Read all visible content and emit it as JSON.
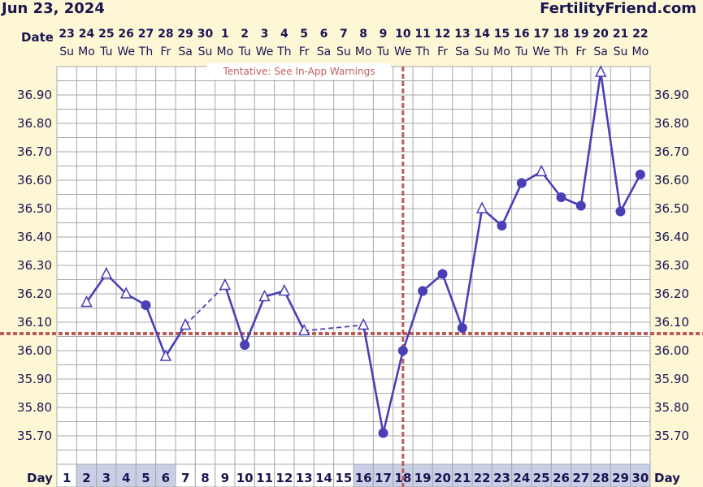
{
  "header": {
    "date": "Jun 23, 2024",
    "brand": "FertilityFriend.com"
  },
  "row_labels": {
    "date": "Date",
    "day": "Day"
  },
  "note": "Tentative: See In-App Warnings",
  "colors": {
    "background": "#fdf7d6",
    "plot_background": "#ffffff",
    "grid": "#a8a8a8",
    "line": "#4a3fb5",
    "coverline": "#c05a55",
    "text": "#1a1550",
    "day_cell_highlight": "#c8d0e8"
  },
  "chart_data": {
    "type": "line",
    "title": "",
    "xlabel": "Day",
    "ylabel": "",
    "ylim": [
      35.62,
      36.98
    ],
    "y_ticks": [
      "36.90",
      "36.80",
      "36.70",
      "36.60",
      "36.50",
      "36.40",
      "36.30",
      "36.20",
      "36.10",
      "36.00",
      "35.90",
      "35.80",
      "35.70"
    ],
    "days": [
      1,
      2,
      3,
      4,
      5,
      6,
      7,
      8,
      9,
      10,
      11,
      12,
      13,
      14,
      15,
      16,
      17,
      18,
      19,
      20,
      21,
      22,
      23,
      24,
      25,
      26,
      27,
      28,
      29,
      30
    ],
    "dates": [
      "23",
      "24",
      "25",
      "26",
      "27",
      "28",
      "29",
      "30",
      "1",
      "2",
      "3",
      "4",
      "5",
      "6",
      "7",
      "8",
      "9",
      "10",
      "11",
      "12",
      "13",
      "14",
      "15",
      "16",
      "17",
      "18",
      "19",
      "20",
      "21",
      "22"
    ],
    "weekdays": [
      "Su",
      "Mo",
      "Tu",
      "We",
      "Th",
      "Fr",
      "Sa",
      "Su",
      "Mo",
      "Tu",
      "We",
      "Th",
      "Fr",
      "Sa",
      "Su",
      "Mo",
      "Tu",
      "We",
      "Th",
      "Fr",
      "Sa",
      "Su",
      "Mo",
      "Tu",
      "We",
      "Th",
      "Fr",
      "Sa",
      "Su",
      "Mo"
    ],
    "highlighted_days": [
      2,
      3,
      4,
      5,
      6,
      16,
      17,
      18,
      19,
      20,
      21,
      22,
      23,
      24,
      25,
      26,
      27,
      28,
      29,
      30
    ],
    "temperatures": [
      {
        "day": 2,
        "value": 36.17,
        "marker": "triangle"
      },
      {
        "day": 3,
        "value": 36.27,
        "marker": "triangle"
      },
      {
        "day": 4,
        "value": 36.2,
        "marker": "triangle"
      },
      {
        "day": 5,
        "value": 36.16,
        "marker": "circle"
      },
      {
        "day": 6,
        "value": 35.98,
        "marker": "triangle"
      },
      {
        "day": 7,
        "value": 36.09,
        "marker": "triangle"
      },
      {
        "day": 9,
        "value": 36.23,
        "marker": "triangle"
      },
      {
        "day": 10,
        "value": 36.02,
        "marker": "circle"
      },
      {
        "day": 11,
        "value": 36.19,
        "marker": "triangle"
      },
      {
        "day": 12,
        "value": 36.21,
        "marker": "triangle"
      },
      {
        "day": 13,
        "value": 36.07,
        "marker": "triangle"
      },
      {
        "day": 16,
        "value": 36.09,
        "marker": "triangle"
      },
      {
        "day": 17,
        "value": 35.71,
        "marker": "circle"
      },
      {
        "day": 18,
        "value": 36.0,
        "marker": "circle"
      },
      {
        "day": 19,
        "value": 36.21,
        "marker": "circle"
      },
      {
        "day": 20,
        "value": 36.27,
        "marker": "circle"
      },
      {
        "day": 21,
        "value": 36.08,
        "marker": "circle"
      },
      {
        "day": 22,
        "value": 36.5,
        "marker": "triangle"
      },
      {
        "day": 23,
        "value": 36.44,
        "marker": "circle"
      },
      {
        "day": 24,
        "value": 36.59,
        "marker": "circle"
      },
      {
        "day": 25,
        "value": 36.63,
        "marker": "triangle"
      },
      {
        "day": 26,
        "value": 36.54,
        "marker": "circle"
      },
      {
        "day": 27,
        "value": 36.51,
        "marker": "circle"
      },
      {
        "day": 28,
        "value": 36.98,
        "marker": "triangle"
      },
      {
        "day": 29,
        "value": 36.49,
        "marker": "circle"
      },
      {
        "day": 30,
        "value": 36.62,
        "marker": "circle"
      }
    ],
    "segments": [
      {
        "from": 2,
        "to": 3,
        "style": "solid"
      },
      {
        "from": 3,
        "to": 4,
        "style": "solid"
      },
      {
        "from": 4,
        "to": 5,
        "style": "solid"
      },
      {
        "from": 5,
        "to": 6,
        "style": "solid"
      },
      {
        "from": 6,
        "to": 7,
        "style": "solid"
      },
      {
        "from": 7,
        "to": 9,
        "style": "dashed"
      },
      {
        "from": 9,
        "to": 10,
        "style": "solid"
      },
      {
        "from": 10,
        "to": 11,
        "style": "solid"
      },
      {
        "from": 11,
        "to": 12,
        "style": "solid"
      },
      {
        "from": 12,
        "to": 13,
        "style": "solid"
      },
      {
        "from": 13,
        "to": 16,
        "style": "dashed"
      },
      {
        "from": 16,
        "to": 17,
        "style": "solid"
      },
      {
        "from": 17,
        "to": 18,
        "style": "solid"
      },
      {
        "from": 18,
        "to": 19,
        "style": "solid"
      },
      {
        "from": 19,
        "to": 20,
        "style": "solid"
      },
      {
        "from": 20,
        "to": 21,
        "style": "solid"
      },
      {
        "from": 21,
        "to": 22,
        "style": "solid"
      },
      {
        "from": 22,
        "to": 23,
        "style": "solid"
      },
      {
        "from": 23,
        "to": 24,
        "style": "solid"
      },
      {
        "from": 24,
        "to": 25,
        "style": "solid"
      },
      {
        "from": 25,
        "to": 26,
        "style": "solid"
      },
      {
        "from": 26,
        "to": 27,
        "style": "solid"
      },
      {
        "from": 27,
        "to": 28,
        "style": "solid"
      },
      {
        "from": 28,
        "to": 29,
        "style": "solid"
      },
      {
        "from": 29,
        "to": 30,
        "style": "solid"
      }
    ],
    "coverline": 36.06,
    "ovulation_day": 18,
    "grid": true
  }
}
